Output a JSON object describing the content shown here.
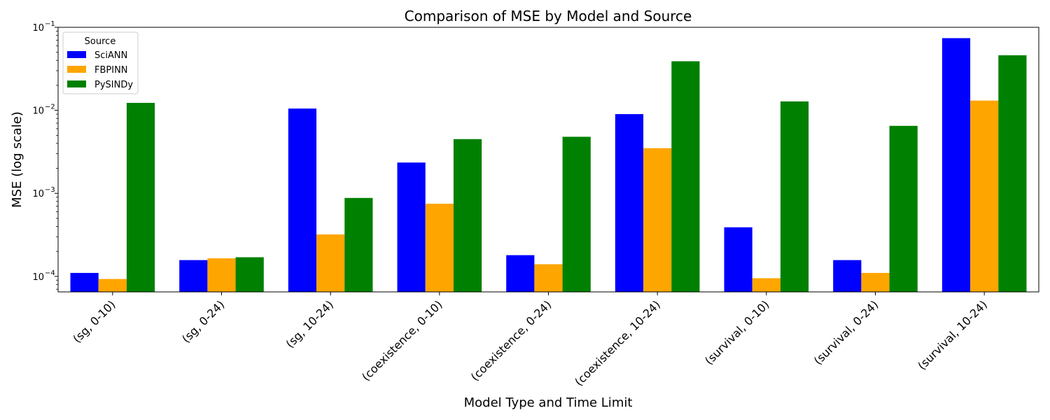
{
  "chart_data": {
    "type": "bar",
    "title": "Comparison of MSE by Model and Source",
    "xlabel": "Model Type and Time Limit",
    "ylabel": "MSE (log scale)",
    "yscale": "log",
    "ylim": [
      6.5e-05,
      0.1
    ],
    "yticks": [
      {
        "value": 0.0001,
        "base": "10",
        "exp": "−4"
      },
      {
        "value": 0.001,
        "base": "10",
        "exp": "−3"
      },
      {
        "value": 0.01,
        "base": "10",
        "exp": "−2"
      },
      {
        "value": 0.1,
        "base": "10",
        "exp": "−1"
      }
    ],
    "categories": [
      "(sg, 0-10)",
      "(sg, 0-24)",
      "(sg, 10-24)",
      "(coexistence, 0-10)",
      "(coexistence, 0-24)",
      "(coexistence, 10-24)",
      "(survival, 0-10)",
      "(survival, 0-24)",
      "(survival, 10-24)"
    ],
    "series": [
      {
        "name": "SciANN",
        "color": "#0000ff",
        "values": [
          0.00011,
          0.000157,
          0.0105,
          0.00235,
          0.00018,
          0.009,
          0.00039,
          0.000157,
          0.074
        ]
      },
      {
        "name": "FBPINN",
        "color": "#ffa500",
        "values": [
          9.3e-05,
          0.000165,
          0.00032,
          0.00075,
          0.00014,
          0.0035,
          9.5e-05,
          0.00011,
          0.0131
        ]
      },
      {
        "name": "PySINDy",
        "color": "#008000",
        "values": [
          0.0123,
          0.00017,
          0.00088,
          0.0045,
          0.0048,
          0.039,
          0.0128,
          0.0065,
          0.046
        ]
      }
    ],
    "legend": {
      "title": "Source",
      "position": "top-left"
    },
    "grid": false
  }
}
